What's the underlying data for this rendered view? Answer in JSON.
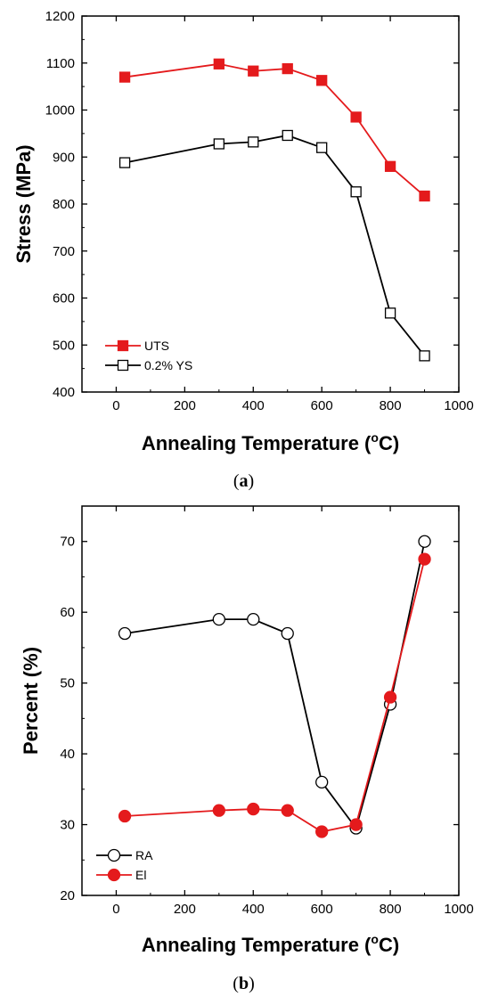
{
  "chart_data": [
    {
      "type": "line",
      "panel_label": "a",
      "xlabel_main": "Annealing Temperature (",
      "xlabel_sup": "o",
      "xlabel_end": "C)",
      "ylabel": "Stress (MPa)",
      "xlim": [
        -100,
        1000
      ],
      "ylim": [
        400,
        1200
      ],
      "x_ticks": [
        0,
        200,
        400,
        600,
        800,
        1000
      ],
      "y_ticks": [
        400,
        500,
        600,
        700,
        800,
        900,
        1000,
        1100,
        1200
      ],
      "legend_position": "bottom-left",
      "series": [
        {
          "name": "UTS",
          "color": "#e41a1c",
          "marker": "square-filled",
          "x": [
            25,
            300,
            400,
            500,
            600,
            700,
            800,
            900
          ],
          "y": [
            1070,
            1098,
            1083,
            1088,
            1063,
            985,
            880,
            817
          ]
        },
        {
          "name": "0.2% YS",
          "color": "#000000",
          "marker": "square-open",
          "x": [
            25,
            300,
            400,
            500,
            600,
            700,
            800,
            900
          ],
          "y": [
            888,
            928,
            932,
            946,
            920,
            826,
            568,
            477
          ]
        }
      ]
    },
    {
      "type": "line",
      "panel_label": "b",
      "xlabel_main": "Annealing Temperature (",
      "xlabel_sup": "o",
      "xlabel_end": "C)",
      "ylabel": "Percent (%)",
      "xlim": [
        -100,
        1000
      ],
      "ylim": [
        20,
        75
      ],
      "x_ticks": [
        0,
        200,
        400,
        600,
        800,
        1000
      ],
      "y_ticks": [
        20,
        30,
        40,
        50,
        60,
        70
      ],
      "legend_position": "bottom-left",
      "series": [
        {
          "name": "RA",
          "color": "#000000",
          "marker": "circle-open",
          "x": [
            25,
            300,
            400,
            500,
            600,
            700,
            800,
            900
          ],
          "y": [
            57,
            59,
            59,
            57,
            36,
            29.5,
            47,
            70
          ]
        },
        {
          "name": "El",
          "color": "#e41a1c",
          "marker": "circle-filled",
          "x": [
            25,
            300,
            400,
            500,
            600,
            700,
            800,
            900
          ],
          "y": [
            31.2,
            32,
            32.2,
            32,
            29,
            30,
            48,
            67.5
          ]
        }
      ]
    }
  ]
}
